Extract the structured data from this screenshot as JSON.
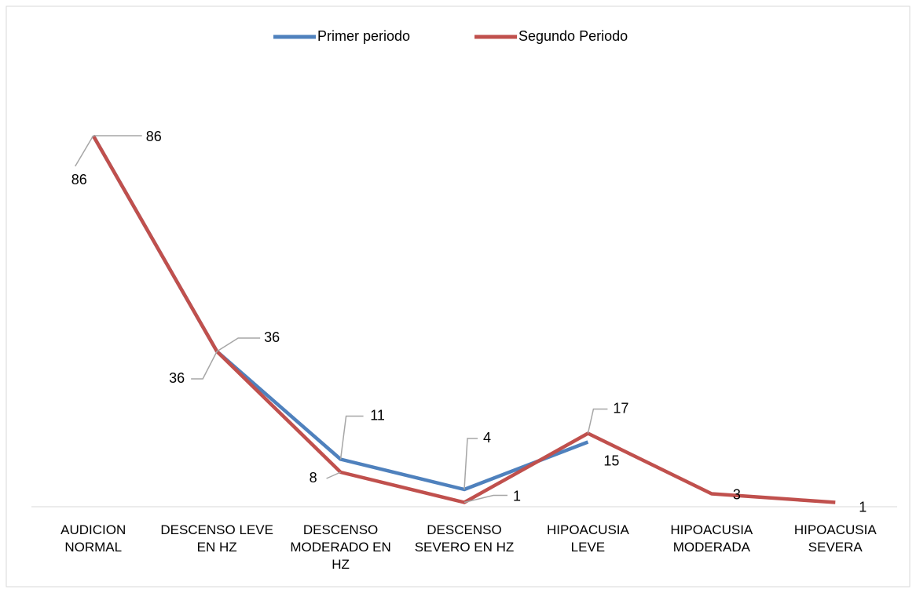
{
  "chart_data": {
    "type": "line",
    "categories": [
      "AUDICION NORMAL",
      "DESCENSO LEVE EN HZ",
      "DESCENSO MODERADO EN HZ",
      "DESCENSO SEVERO EN HZ",
      "HIPOACUSIA LEVE",
      "HIPOACUSIA MODERADA",
      "HIPOACUSIA SEVERA"
    ],
    "series": [
      {
        "name": "Primer periodo",
        "color": "#4f81bd",
        "values": [
          86,
          36,
          11,
          4,
          15,
          null,
          null
        ]
      },
      {
        "name": "Segundo Periodo",
        "color": "#c0504d",
        "values": [
          86,
          36,
          8,
          1,
          17,
          3,
          1
        ]
      }
    ],
    "ylim": [
      0,
      100
    ],
    "legend": "top"
  }
}
